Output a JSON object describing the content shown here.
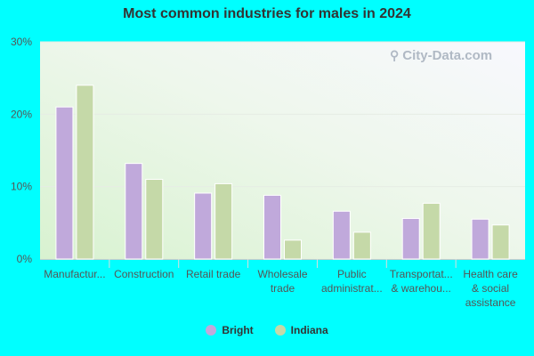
{
  "chart_data": {
    "type": "bar",
    "title": "Most common industries for males in 2024",
    "categories": [
      [
        "Manufactur..."
      ],
      [
        "Construction"
      ],
      [
        "Retail trade"
      ],
      [
        "Wholesale",
        "trade"
      ],
      [
        "Public",
        "administrat..."
      ],
      [
        "Transportat...",
        "& warehou..."
      ],
      [
        "Health care",
        "& social",
        "assistance"
      ]
    ],
    "series": [
      {
        "name": "Bright",
        "color": "#c0a9db",
        "values": [
          21.0,
          13.2,
          9.1,
          8.8,
          6.6,
          5.6,
          5.5
        ]
      },
      {
        "name": "Indiana",
        "color": "#c5d9a8",
        "values": [
          24.0,
          11.0,
          10.4,
          2.6,
          3.7,
          7.7,
          4.7
        ]
      }
    ],
    "ylim": [
      0,
      30
    ],
    "yticks": [
      0,
      10,
      20,
      30
    ],
    "ytick_labels": [
      "0%",
      "10%",
      "20%",
      "30%"
    ],
    "grid": true,
    "legend": "bottom-center"
  },
  "watermark": {
    "text": "City-Data.com"
  }
}
